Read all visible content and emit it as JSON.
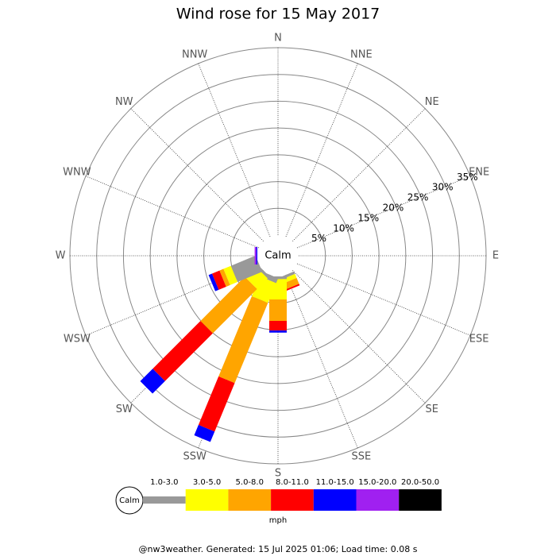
{
  "chart_data": {
    "type": "windrose",
    "title": "Wind rose for 15 May 2017",
    "center_label": "Calm",
    "categories": [
      "N",
      "NNE",
      "NE",
      "ENE",
      "E",
      "ESE",
      "SE",
      "SSE",
      "S",
      "SSW",
      "SW",
      "WSW",
      "W",
      "WNW",
      "NW",
      "NNW"
    ],
    "series": [
      {
        "name": "1.0-3.0",
        "color": "#999999",
        "values": [
          0,
          0,
          0,
          0,
          0,
          0,
          0,
          0.5,
          0.5,
          1,
          0.5,
          5,
          0,
          0,
          0,
          0
        ]
      },
      {
        "name": "3.0-5.0",
        "color": "#ffff00",
        "values": [
          0,
          0,
          0,
          0,
          0,
          0,
          0,
          0.8,
          3.8,
          4,
          2.8,
          1.5,
          0,
          0,
          0,
          0
        ]
      },
      {
        "name": "5.0-8.0",
        "color": "#ffa500",
        "values": [
          0,
          0,
          0,
          0,
          0,
          0,
          0,
          1.2,
          4,
          16.2,
          11.7,
          0.8,
          0,
          0,
          0,
          0
        ]
      },
      {
        "name": "8.0-11.0",
        "color": "#ff0000",
        "values": [
          0,
          0,
          0,
          0,
          0,
          0,
          0,
          0.3,
          1.8,
          9.8,
          12.6,
          1.5,
          0,
          0,
          0,
          0
        ]
      },
      {
        "name": "11.0-15.0",
        "color": "#0000ff",
        "values": [
          0,
          0,
          0,
          0,
          0,
          0,
          0,
          0,
          0.4,
          2.1,
          3.3,
          0.7,
          0.2,
          0,
          0,
          0
        ]
      },
      {
        "name": "15.0-20.0",
        "color": "#a020f0",
        "values": [
          0,
          0,
          0,
          0,
          0,
          0,
          0,
          0,
          0,
          0,
          0,
          0,
          0.3,
          0,
          0,
          0
        ]
      },
      {
        "name": "20.0-50.0",
        "color": "#000000",
        "values": [
          0,
          0,
          0,
          0,
          0,
          0,
          0,
          0,
          0,
          0,
          0,
          0,
          0,
          0,
          0,
          0
        ]
      }
    ],
    "rlim": [
      0,
      35
    ],
    "rticks": [
      {
        "value": 5,
        "label": "5%"
      },
      {
        "value": 10,
        "label": "10%"
      },
      {
        "value": 15,
        "label": "15%"
      },
      {
        "value": 20,
        "label": "20%"
      },
      {
        "value": 25,
        "label": "25%"
      },
      {
        "value": 30,
        "label": "30%"
      },
      {
        "value": 35,
        "label": "35%"
      }
    ],
    "legend_title": "mph",
    "footer": "@nw3weather. Generated: 15 Jul 2025 01:06; Load time: 0.08 s"
  }
}
